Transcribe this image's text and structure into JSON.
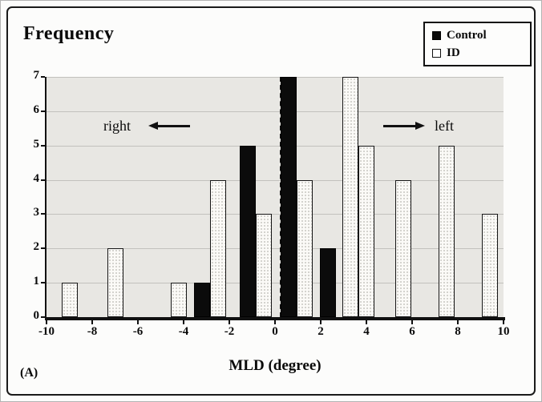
{
  "figure": {
    "panel_label": "(A)",
    "y_axis_title": "Frequency",
    "x_axis_title": "MLD (degree)",
    "annotation_left": "right",
    "annotation_right": "left"
  },
  "legend": {
    "items": [
      {
        "label": "Control",
        "swatch": "filled-black-square"
      },
      {
        "label": "ID",
        "swatch": "open-white-square"
      }
    ]
  },
  "chart_data": {
    "type": "bar",
    "title": "",
    "xlabel": "MLD (degree)",
    "ylabel": "Frequency",
    "xlim": [
      -10,
      10
    ],
    "ylim": [
      0,
      7
    ],
    "x_ticks": [
      -10,
      -8,
      -6,
      -4,
      -2,
      0,
      2,
      4,
      6,
      8,
      10
    ],
    "y_ticks": [
      0,
      1,
      2,
      3,
      4,
      5,
      6,
      7
    ],
    "grid": "horizontal",
    "legend_position": "top-right",
    "dashed_vline_x": 0.2,
    "direction_labels": {
      "negative_side": "right",
      "positive_side": "left"
    },
    "series": [
      "Control",
      "ID"
    ],
    "bars": [
      {
        "x": -9.0,
        "series": "ID",
        "value": 1
      },
      {
        "x": -7.0,
        "series": "ID",
        "value": 2
      },
      {
        "x": -4.2,
        "series": "ID",
        "value": 1
      },
      {
        "x": -3.2,
        "series": "Control",
        "value": 1
      },
      {
        "x": -2.5,
        "series": "ID",
        "value": 4
      },
      {
        "x": -1.2,
        "series": "Control",
        "value": 5
      },
      {
        "x": -0.5,
        "series": "ID",
        "value": 3
      },
      {
        "x": 0.6,
        "series": "Control",
        "value": 7
      },
      {
        "x": 1.3,
        "series": "ID",
        "value": 4
      },
      {
        "x": 2.3,
        "series": "Control",
        "value": 2
      },
      {
        "x": 3.3,
        "series": "ID",
        "value": 7
      },
      {
        "x": 4.0,
        "series": "ID",
        "value": 5
      },
      {
        "x": 5.6,
        "series": "ID",
        "value": 4
      },
      {
        "x": 7.5,
        "series": "ID",
        "value": 5
      },
      {
        "x": 9.4,
        "series": "ID",
        "value": 3
      }
    ]
  },
  "colors": {
    "control_fill": "#0b0b0b",
    "id_fill": "#fbfaf7",
    "plot_background": "#e8e7e3",
    "gridline": "#c2c1bd",
    "axis": "#111111",
    "frame_border": "#1a1a1a"
  }
}
